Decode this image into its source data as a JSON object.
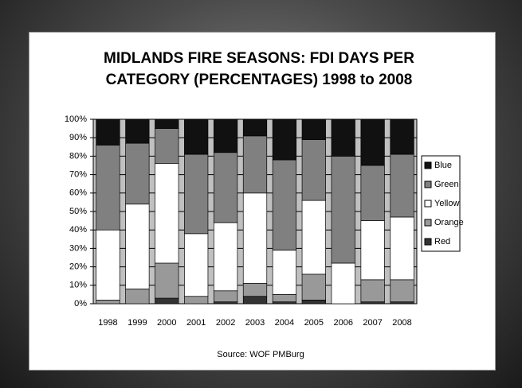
{
  "chart_data": {
    "type": "stacked_bar",
    "title": "MIDLANDS FIRE SEASONS: FDI DAYS PER CATEGORY (PERCENTAGES) 1998 to 2008",
    "source": "Source: WOF PMBurg",
    "categories": [
      "1998",
      "1999",
      "2000",
      "2001",
      "2002",
      "2003",
      "2004",
      "2005",
      "2006",
      "2007",
      "2008"
    ],
    "series": [
      {
        "name": "Red",
        "color": "#333333",
        "values": [
          0,
          0,
          3,
          0,
          1,
          4,
          1,
          2,
          0,
          1,
          1
        ]
      },
      {
        "name": "Orange",
        "color": "#999999",
        "values": [
          2,
          8,
          19,
          4,
          6,
          7,
          4,
          14,
          0,
          12,
          12
        ]
      },
      {
        "name": "Yellow",
        "color": "#ffffff",
        "values": [
          38,
          46,
          54,
          34,
          37,
          49,
          24,
          40,
          22,
          32,
          34
        ]
      },
      {
        "name": "Green",
        "color": "#808080",
        "values": [
          46,
          33,
          19,
          43,
          38,
          31,
          49,
          33,
          58,
          30,
          34
        ]
      },
      {
        "name": "Blue",
        "color": "#111111",
        "values": [
          14,
          13,
          5,
          19,
          18,
          9,
          22,
          11,
          20,
          25,
          19
        ]
      }
    ],
    "ylim": [
      0,
      100
    ],
    "yticks": [
      {
        "value": 0,
        "label": "0%"
      },
      {
        "value": 10,
        "label": "10%"
      },
      {
        "value": 20,
        "label": "20%"
      },
      {
        "value": 30,
        "label": "30%"
      },
      {
        "value": 40,
        "label": "40%"
      },
      {
        "value": 50,
        "label": "50%"
      },
      {
        "value": 60,
        "label": "60%"
      },
      {
        "value": 70,
        "label": "70%"
      },
      {
        "value": 80,
        "label": "80%"
      },
      {
        "value": 90,
        "label": "90%"
      },
      {
        "value": 100,
        "label": "100%"
      }
    ],
    "grid": true,
    "plot_background": "#c0c0c0",
    "legend": "right"
  }
}
